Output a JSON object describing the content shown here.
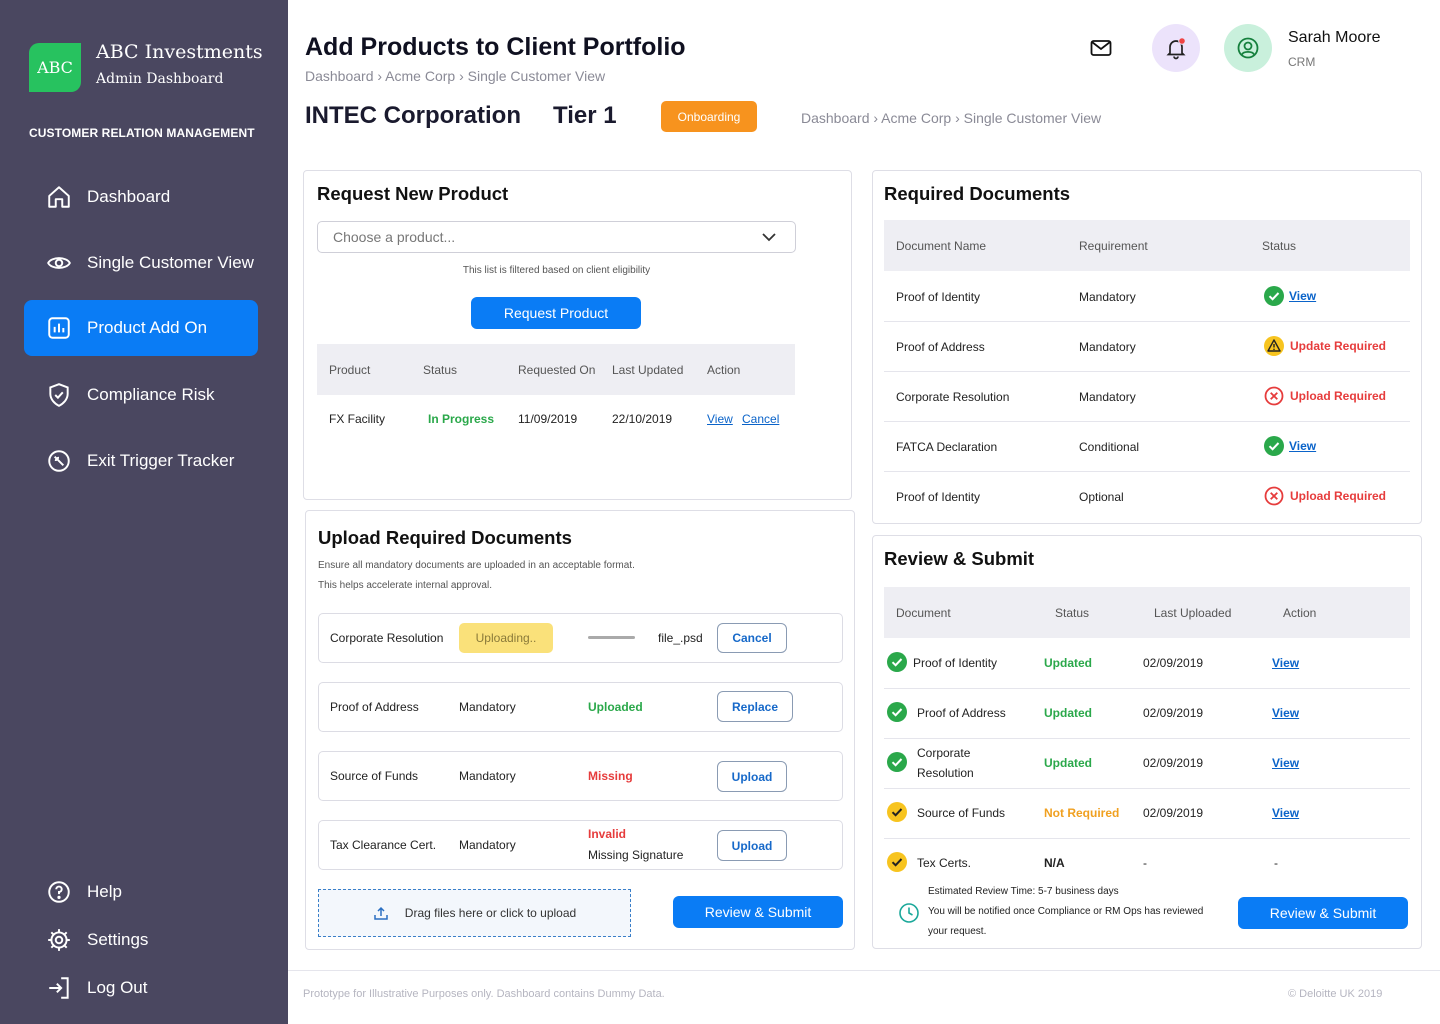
{
  "brand": {
    "logo": "ABC",
    "name": "ABC Investments",
    "sub": "Admin Dashboard",
    "section": "CUSTOMER RELATION MANAGEMENT"
  },
  "nav": [
    {
      "label": "Dashboard",
      "icon": "home-icon"
    },
    {
      "label": "Single Customer View",
      "icon": "eye-icon"
    },
    {
      "label": "Product Add On",
      "icon": "chart-icon",
      "active": true
    },
    {
      "label": "Compliance Risk",
      "icon": "shield-icon"
    },
    {
      "label": "Exit Trigger Tracker",
      "icon": "tracker-icon"
    }
  ],
  "nav_bottom": [
    {
      "label": "Help",
      "icon": "help-icon"
    },
    {
      "label": "Settings",
      "icon": "gear-icon"
    },
    {
      "label": "Log Out",
      "icon": "logout-icon"
    }
  ],
  "header": {
    "title": "Add Products to Client Portfolio",
    "breadcrumb": "Dashboard › Acme Corp › Single Customer View",
    "company": "INTEC Corporation",
    "tier": "Tier 1",
    "badge": "Onboarding",
    "breadcrumb2": "Dashboard › Acme Corp › Single Customer View"
  },
  "user": {
    "name": "Sarah Moore",
    "role": "CRM"
  },
  "request": {
    "title": "Request New Product",
    "placeholder": "Choose a product...",
    "note": "This list is filtered based on client eligibility",
    "button": "Request Product",
    "headers": [
      "Product",
      "Status",
      "Requested On",
      "Last Updated",
      "Action"
    ],
    "row": {
      "product": "FX Facility",
      "status": "In Progress",
      "requested": "11/09/2019",
      "updated": "22/10/2019",
      "view": "View",
      "cancel": "Cancel"
    }
  },
  "upload": {
    "title": "Upload Required Documents",
    "note1": "Ensure all mandatory documents are uploaded in an acceptable format.",
    "note2": "This helps accelerate internal approval.",
    "row1": {
      "name": "Corporate Resolution",
      "state": "Uploading..",
      "file": "file_.psd",
      "button": "Cancel"
    },
    "row2": {
      "name": "Proof of Address",
      "req": "Mandatory",
      "status": "Uploaded",
      "button": "Replace"
    },
    "row3": {
      "name": "Source of Funds",
      "req": "Mandatory",
      "status": "Missing",
      "button": "Upload"
    },
    "row4": {
      "name": "Tax Clearance Cert.",
      "req": "Mandatory",
      "status": "Invalid",
      "status2": "Missing Signature",
      "button": "Upload"
    },
    "dropzone": "Drag files here or click to upload",
    "submit": "Review & Submit"
  },
  "required": {
    "title": "Required Documents",
    "headers": [
      "Document Name",
      "Requirement",
      "Status"
    ],
    "rows": [
      {
        "name": "Proof of Identity",
        "req": "Mandatory",
        "status": "View",
        "kind": "ok"
      },
      {
        "name": "Proof of Address",
        "req": "Mandatory",
        "status": "Update Required",
        "kind": "warn"
      },
      {
        "name": "Corporate Resolution",
        "req": "Mandatory",
        "status": "Upload Required",
        "kind": "err"
      },
      {
        "name": "FATCA Declaration",
        "req": "Conditional",
        "status": "View",
        "kind": "ok"
      },
      {
        "name": "Proof of Identity",
        "req": "Optional",
        "status": "Upload Required",
        "kind": "err"
      }
    ]
  },
  "review": {
    "title": "Review & Submit",
    "headers": [
      "Document",
      "Status",
      "Last Uploaded",
      "Action"
    ],
    "rows": [
      {
        "doc": "Proof of Identity",
        "status": "Updated",
        "date": "02/09/2019",
        "action": "View",
        "kind": "ok"
      },
      {
        "doc": "Proof of Address",
        "status": "Updated",
        "date": "02/09/2019",
        "action": "View",
        "kind": "ok"
      },
      {
        "doc": "Corporate",
        "doc2": "Resolution",
        "status": "Updated",
        "date": "02/09/2019",
        "action": "View",
        "kind": "ok"
      },
      {
        "doc": "Source of Funds",
        "status": "Not Required",
        "date": "02/09/2019",
        "action": "View",
        "kind": "na"
      },
      {
        "doc": "Tex Certs.",
        "status": "N/A",
        "date": "-",
        "action": "-",
        "kind": "na"
      }
    ],
    "est": "Estimated Review Time: 5-7 business days",
    "notify1": "You will be notified once Compliance or RM Ops has reviewed",
    "notify2": "your request.",
    "submit": "Review & Submit"
  },
  "footer": {
    "left": "Prototype for Illustrative Purposes only. Dashboard contains Dummy Data.",
    "right": "© Deloitte UK 2019"
  },
  "colors": {
    "sidebar": "#4a4760",
    "accent": "#0a7cf5",
    "brand": "#27c25f",
    "onboarding": "#f7931e",
    "success": "#2aa84a",
    "error": "#e63c3c",
    "warning": "#f7c41f"
  }
}
